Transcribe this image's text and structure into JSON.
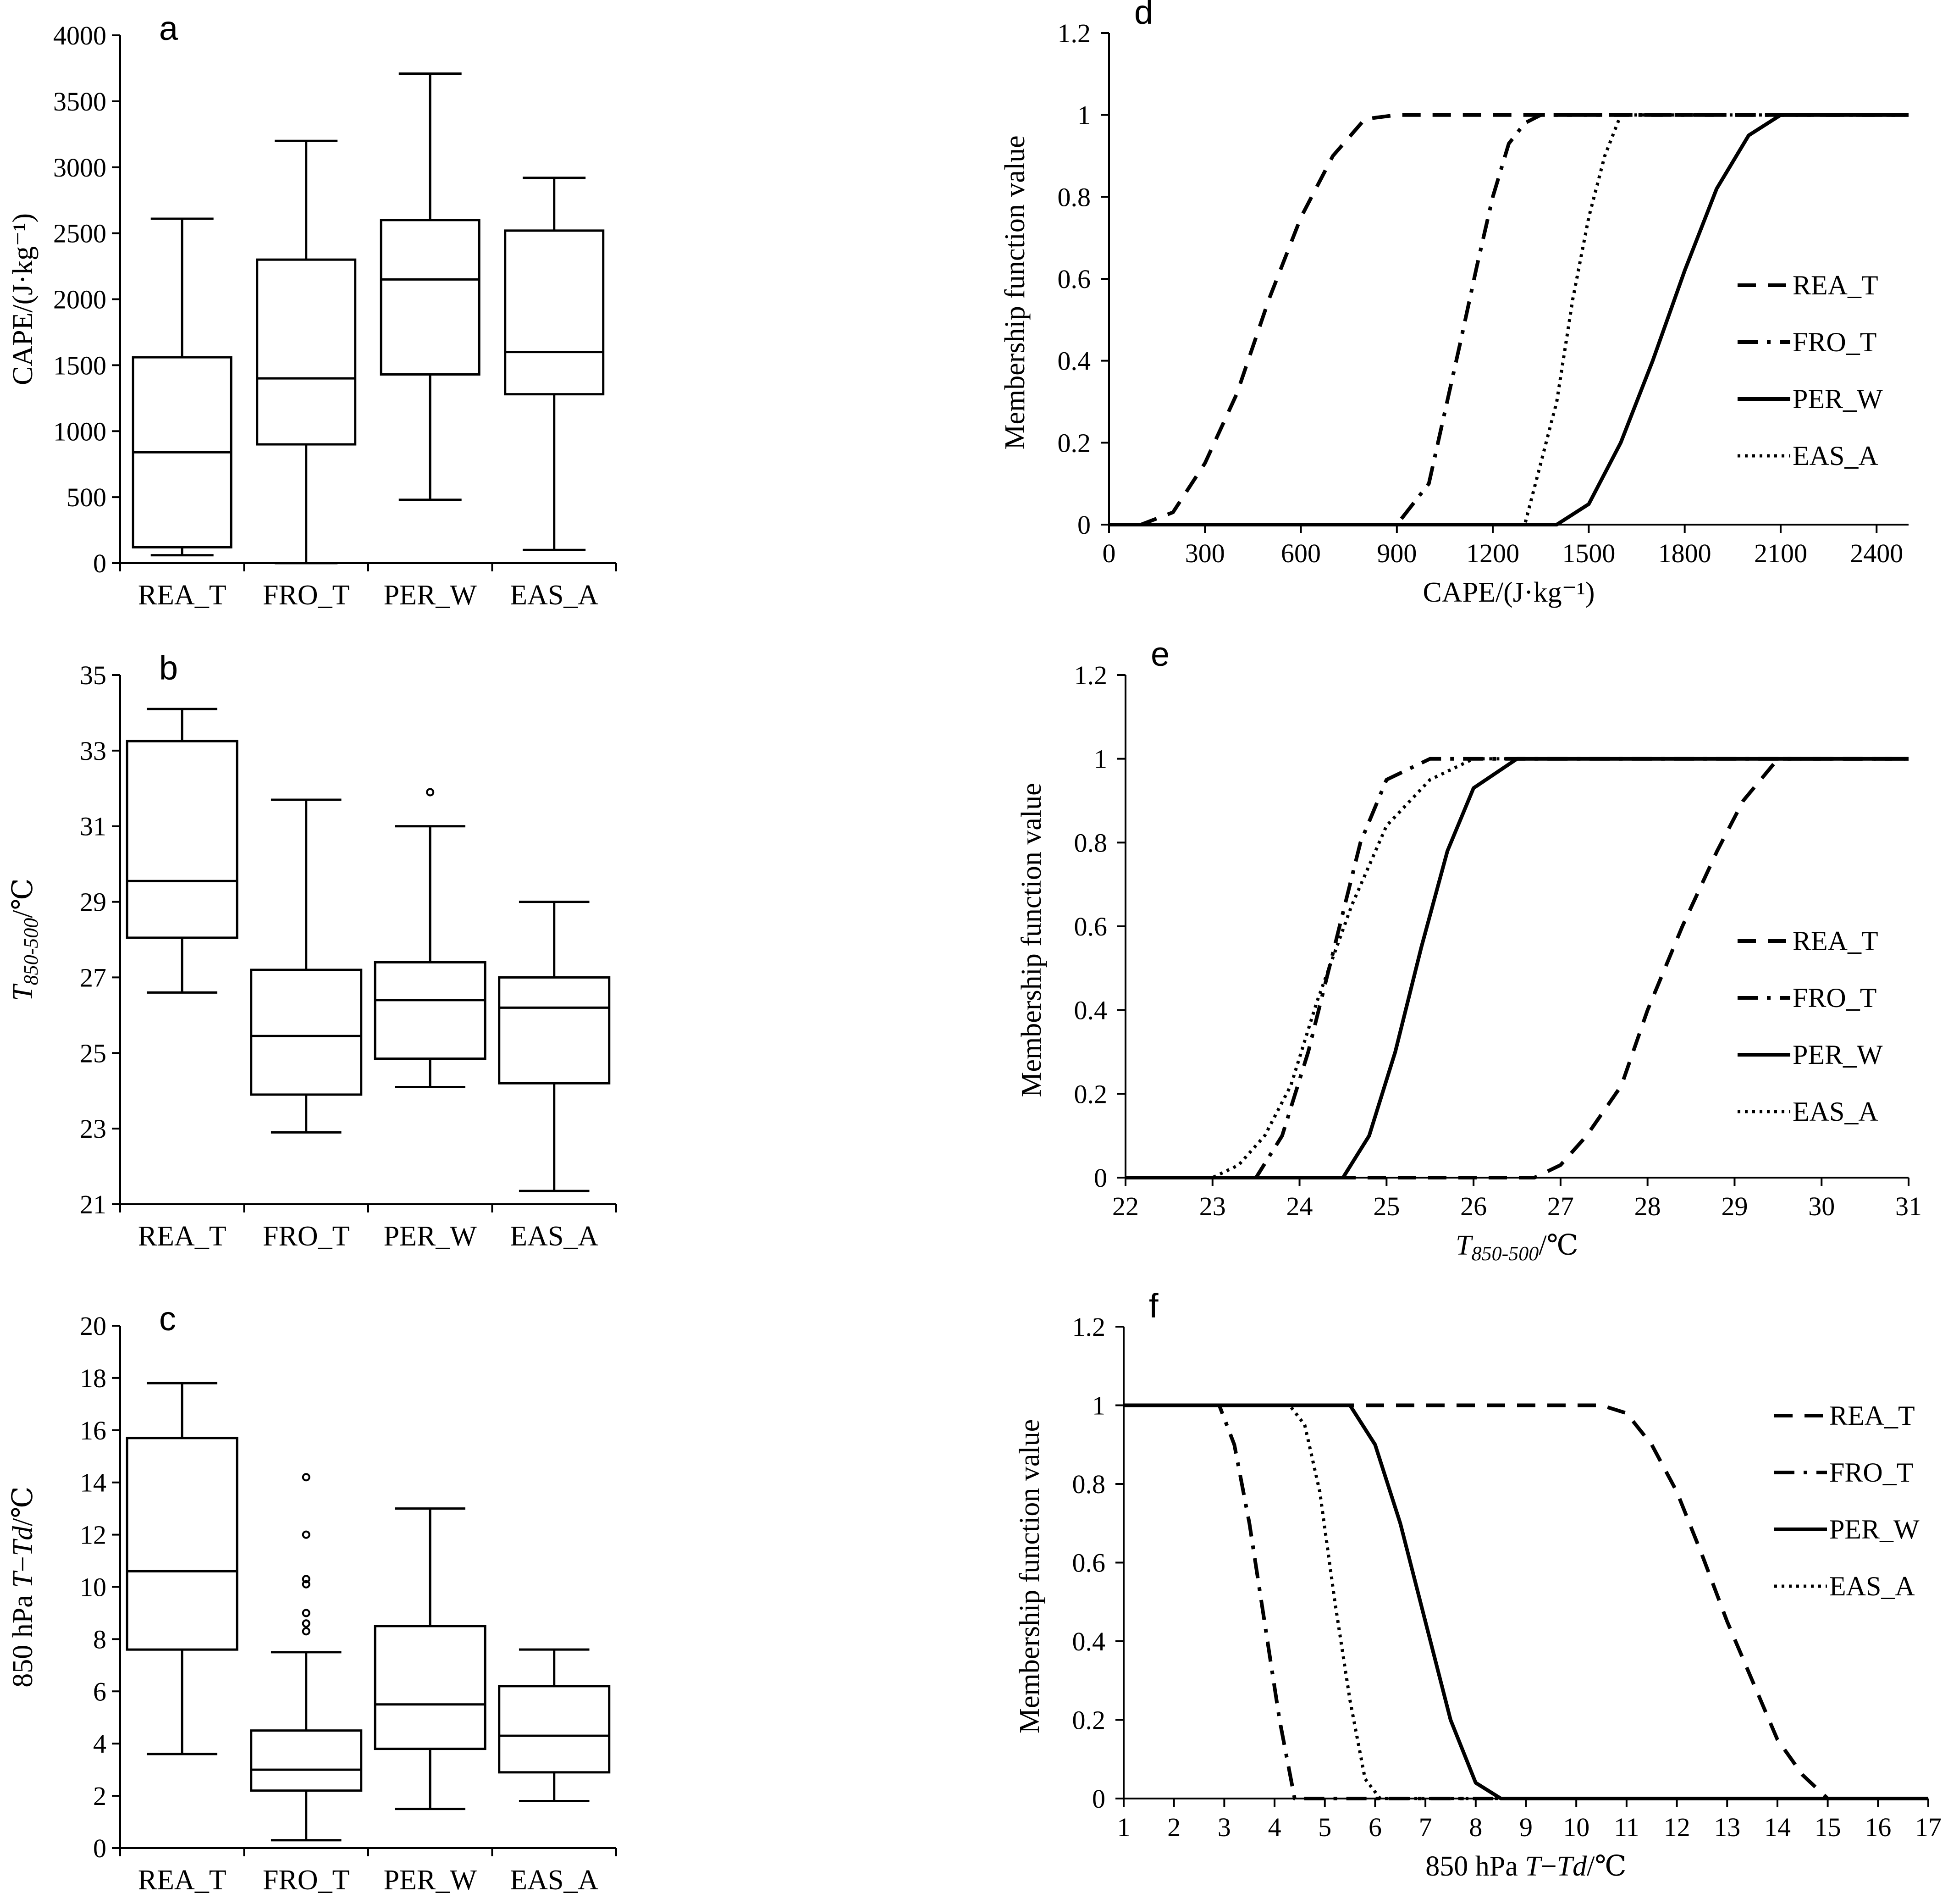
{
  "chart_data": [
    {
      "id": "a",
      "type": "box",
      "panel_label": "a",
      "title": "",
      "xlabel": "",
      "ylabel": "CAPE/(J·kg⁻¹)",
      "ylim": [
        0,
        4000
      ],
      "yticks": [
        0,
        500,
        1000,
        1500,
        2000,
        2500,
        3000,
        3500,
        4000
      ],
      "categories": [
        "REA_T",
        "FRO_T",
        "PER_W",
        "EAS_A"
      ],
      "boxes": [
        {
          "name": "REA_T",
          "whisker_low": 60,
          "q1": 120,
          "median": 840,
          "q3": 1560,
          "whisker_high": 2610,
          "outliers": []
        },
        {
          "name": "FRO_T",
          "whisker_low": 0,
          "q1": 900,
          "median": 1400,
          "q3": 2300,
          "whisker_high": 3200,
          "outliers": []
        },
        {
          "name": "PER_W",
          "whisker_low": 480,
          "q1": 1430,
          "median": 2150,
          "q3": 2600,
          "whisker_high": 3710,
          "outliers": []
        },
        {
          "name": "EAS_A",
          "whisker_low": 100,
          "q1": 1280,
          "median": 1600,
          "q3": 2520,
          "whisker_high": 2920,
          "outliers": []
        }
      ]
    },
    {
      "id": "b",
      "type": "box",
      "panel_label": "b",
      "title": "",
      "xlabel": "",
      "ylabel_main": "T",
      "ylabel_sub": "850-500",
      "ylabel_unit": "/℃",
      "ylim": [
        21,
        35
      ],
      "yticks": [
        21,
        23,
        25,
        27,
        29,
        31,
        33,
        35
      ],
      "categories": [
        "REA_T",
        "FRO_T",
        "PER_W",
        "EAS_A"
      ],
      "boxes": [
        {
          "name": "REA_T",
          "whisker_low": 26.6,
          "q1": 28.05,
          "median": 29.55,
          "q3": 33.25,
          "whisker_high": 34.1,
          "outliers": []
        },
        {
          "name": "FRO_T",
          "whisker_low": 22.9,
          "q1": 23.9,
          "median": 25.45,
          "q3": 27.2,
          "whisker_high": 31.7,
          "outliers": []
        },
        {
          "name": "PER_W",
          "whisker_low": 24.1,
          "q1": 24.85,
          "median": 26.4,
          "q3": 27.4,
          "whisker_high": 31.0,
          "outliers": [
            31.9
          ]
        },
        {
          "name": "EAS_A",
          "whisker_low": 21.35,
          "q1": 24.2,
          "median": 26.2,
          "q3": 27.0,
          "whisker_high": 29.0,
          "outliers": []
        }
      ]
    },
    {
      "id": "c",
      "type": "box",
      "panel_label": "c",
      "title": "",
      "xlabel": "",
      "ylabel_prefix": "850 hPa ",
      "ylabel_T": "T",
      "ylabel_dash": "−",
      "ylabel_Td": "Td",
      "ylabel_unit": "/℃",
      "ylim": [
        0,
        20
      ],
      "yticks": [
        0,
        2,
        4,
        6,
        8,
        10,
        12,
        14,
        16,
        18,
        20
      ],
      "categories": [
        "REA_T",
        "FRO_T",
        "PER_W",
        "EAS_A"
      ],
      "boxes": [
        {
          "name": "REA_T",
          "whisker_low": 3.6,
          "q1": 7.6,
          "median": 10.6,
          "q3": 15.7,
          "whisker_high": 17.8,
          "outliers": []
        },
        {
          "name": "FRO_T",
          "whisker_low": 0.3,
          "q1": 2.2,
          "median": 3.0,
          "q3": 4.5,
          "whisker_high": 7.5,
          "outliers": [
            8.3,
            8.6,
            9.0,
            10.1,
            10.3,
            12.0,
            14.2
          ]
        },
        {
          "name": "PER_W",
          "whisker_low": 1.5,
          "q1": 3.8,
          "median": 5.5,
          "q3": 8.5,
          "whisker_high": 13.0,
          "outliers": []
        },
        {
          "name": "EAS_A",
          "whisker_low": 1.8,
          "q1": 2.9,
          "median": 4.3,
          "q3": 6.2,
          "whisker_high": 7.6,
          "outliers": []
        }
      ]
    },
    {
      "id": "d",
      "type": "line",
      "panel_label": "d",
      "title": "",
      "xlabel": "CAPE/(J·kg⁻¹)",
      "ylabel": "Membership function value",
      "xlim": [
        0,
        2500
      ],
      "xticks": [
        0,
        300,
        600,
        900,
        1200,
        1500,
        1800,
        2100,
        2400
      ],
      "ylim": [
        0,
        1.2
      ],
      "yticks": [
        0,
        0.2,
        0.4,
        0.6,
        0.8,
        1,
        1.2
      ],
      "legend_position": "right",
      "series": [
        {
          "name": "REA_T",
          "style": "dashed",
          "x": [
            0,
            100,
            200,
            300,
            400,
            500,
            600,
            700,
            800,
            900,
            2500
          ],
          "y": [
            0,
            0,
            0.03,
            0.15,
            0.32,
            0.55,
            0.75,
            0.9,
            0.99,
            1,
            1
          ]
        },
        {
          "name": "FRO_T",
          "style": "dashdot",
          "x": [
            0,
            900,
            1000,
            1100,
            1150,
            1200,
            1250,
            1300,
            1350,
            2500
          ],
          "y": [
            0,
            0,
            0.1,
            0.45,
            0.63,
            0.8,
            0.93,
            0.98,
            1,
            1
          ]
        },
        {
          "name": "PER_W",
          "style": "solid",
          "x": [
            0,
            1400,
            1500,
            1600,
            1700,
            1800,
            1900,
            2000,
            2100,
            2500
          ],
          "y": [
            0,
            0,
            0.05,
            0.2,
            0.4,
            0.62,
            0.82,
            0.95,
            1,
            1
          ]
        },
        {
          "name": "EAS_A",
          "style": "dotted",
          "x": [
            0,
            1300,
            1400,
            1450,
            1500,
            1550,
            1600,
            2500
          ],
          "y": [
            0,
            0,
            0.3,
            0.55,
            0.75,
            0.9,
            1,
            1
          ]
        }
      ]
    },
    {
      "id": "e",
      "type": "line",
      "panel_label": "e",
      "title": "",
      "xlabel_main": "T",
      "xlabel_sub": "850-500",
      "xlabel_unit": "/℃",
      "ylabel": "Membership function value",
      "xlim": [
        22,
        31
      ],
      "xticks": [
        22,
        23,
        24,
        25,
        26,
        27,
        28,
        29,
        30,
        31
      ],
      "ylim": [
        0,
        1.2
      ],
      "yticks": [
        0,
        0.2,
        0.4,
        0.6,
        0.8,
        1,
        1.2
      ],
      "legend_position": "right",
      "series": [
        {
          "name": "REA_T",
          "style": "dashed",
          "x": [
            22,
            26.7,
            27.0,
            27.3,
            27.7,
            28.0,
            28.4,
            28.8,
            29.1,
            29.5,
            31
          ],
          "y": [
            0,
            0,
            0.03,
            0.1,
            0.22,
            0.4,
            0.6,
            0.78,
            0.9,
            1,
            1
          ]
        },
        {
          "name": "FRO_T",
          "style": "dashdot",
          "x": [
            22,
            23.5,
            23.8,
            24.1,
            24.4,
            24.7,
            25.0,
            25.3,
            25.5,
            26.5,
            31
          ],
          "y": [
            0,
            0,
            0.1,
            0.3,
            0.55,
            0.8,
            0.95,
            0.98,
            1,
            1,
            1
          ]
        },
        {
          "name": "PER_W",
          "style": "solid",
          "x": [
            22,
            24.5,
            24.8,
            25.1,
            25.4,
            25.7,
            26.0,
            26.5,
            31
          ],
          "y": [
            0,
            0,
            0.1,
            0.3,
            0.55,
            0.78,
            0.93,
            1,
            1
          ]
        },
        {
          "name": "EAS_A",
          "style": "dotted",
          "x": [
            22,
            23.0,
            23.3,
            23.6,
            23.9,
            24.2,
            24.6,
            25.0,
            25.5,
            26.0,
            31
          ],
          "y": [
            0,
            0,
            0.03,
            0.1,
            0.22,
            0.42,
            0.65,
            0.84,
            0.95,
            1,
            1
          ]
        }
      ]
    },
    {
      "id": "f",
      "type": "line",
      "panel_label": "f",
      "title": "",
      "xlabel_prefix": "850  hPa  ",
      "xlabel_T": "T",
      "xlabel_dash": "−",
      "xlabel_Td": "Td",
      "xlabel_unit": "/℃",
      "ylabel": "Membership function value",
      "xlim": [
        1,
        17
      ],
      "xticks": [
        1,
        2,
        3,
        4,
        5,
        6,
        7,
        8,
        9,
        10,
        11,
        12,
        13,
        14,
        15,
        16,
        17
      ],
      "ylim": [
        0,
        1.2
      ],
      "yticks": [
        0,
        0.2,
        0.4,
        0.6,
        0.8,
        1,
        1.2
      ],
      "legend_position": "top-right",
      "series": [
        {
          "name": "REA_T",
          "style": "dashed",
          "x": [
            1,
            10.5,
            11.0,
            11.5,
            12.0,
            12.5,
            13.0,
            13.5,
            14.0,
            14.5,
            15.0,
            17
          ],
          "y": [
            1,
            1,
            0.98,
            0.9,
            0.78,
            0.62,
            0.45,
            0.3,
            0.15,
            0.06,
            0,
            0
          ]
        },
        {
          "name": "FRO_T",
          "style": "dashdot",
          "x": [
            1,
            2.9,
            3.2,
            3.5,
            3.8,
            4.1,
            4.4,
            17
          ],
          "y": [
            1,
            1,
            0.9,
            0.7,
            0.45,
            0.2,
            0,
            0
          ]
        },
        {
          "name": "PER_W",
          "style": "solid",
          "x": [
            1,
            5.5,
            6.0,
            6.5,
            7.0,
            7.5,
            8.0,
            8.5,
            17
          ],
          "y": [
            1,
            1,
            0.9,
            0.7,
            0.45,
            0.2,
            0.04,
            0,
            0
          ]
        },
        {
          "name": "EAS_A",
          "style": "dotted",
          "x": [
            1,
            4.3,
            4.6,
            4.9,
            5.2,
            5.5,
            5.8,
            6.1,
            17
          ],
          "y": [
            1,
            1,
            0.95,
            0.78,
            0.5,
            0.25,
            0.05,
            0,
            0
          ]
        }
      ]
    }
  ]
}
